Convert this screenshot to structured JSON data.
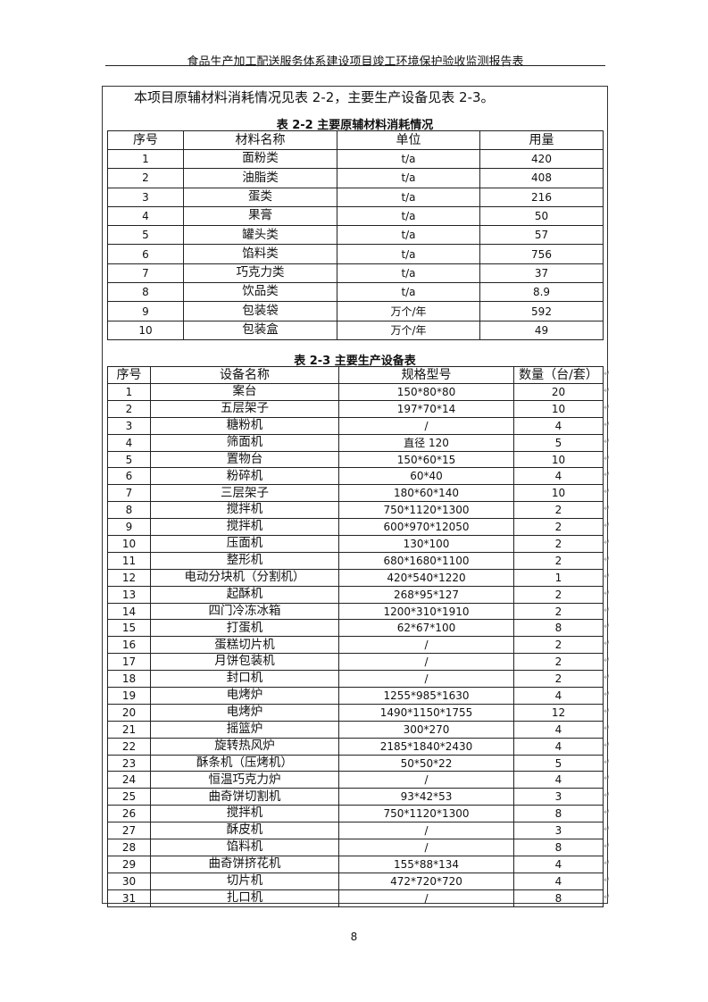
{
  "header": {
    "title": "食品生产加工配送服务体系建设项目竣工环境保护验收监测报告表"
  },
  "intro": "本项目原辅材料消耗情况见表 2-2，主要生产设备见表 2-3。",
  "table22": {
    "caption": "表 2-2   主要原辅材料消耗情况",
    "columns": [
      "序号",
      "材料名称",
      "单位",
      "用量"
    ],
    "rows": [
      [
        "1",
        "面粉类",
        "t/a",
        "420"
      ],
      [
        "2",
        "油脂类",
        "t/a",
        "408"
      ],
      [
        "3",
        "蛋类",
        "t/a",
        "216"
      ],
      [
        "4",
        "果膏",
        "t/a",
        "50"
      ],
      [
        "5",
        "罐头类",
        "t/a",
        "57"
      ],
      [
        "6",
        "馅料类",
        "t/a",
        "756"
      ],
      [
        "7",
        "巧克力类",
        "t/a",
        "37"
      ],
      [
        "8",
        "饮品类",
        "t/a",
        "8.9"
      ],
      [
        "9",
        "包装袋",
        "万个/年",
        "592"
      ],
      [
        "10",
        "包装盒",
        "万个/年",
        "49"
      ]
    ]
  },
  "table23": {
    "caption": "表 2-3   主要生产设备表",
    "columns": [
      "序号",
      "设备名称",
      "规格型号",
      "数量（台/套）"
    ],
    "rows": [
      [
        "1",
        "案台",
        "150*80*80",
        "20"
      ],
      [
        "2",
        "五层架子",
        "197*70*14",
        "10"
      ],
      [
        "3",
        "糖粉机",
        "/",
        "4"
      ],
      [
        "4",
        "筛面机",
        "直径 120",
        "5"
      ],
      [
        "5",
        "置物台",
        "150*60*15",
        "10"
      ],
      [
        "6",
        "粉碎机",
        "60*40",
        "4"
      ],
      [
        "7",
        "三层架子",
        "180*60*140",
        "10"
      ],
      [
        "8",
        "搅拌机",
        "750*1120*1300",
        "2"
      ],
      [
        "9",
        "搅拌机",
        "600*970*12050",
        "2"
      ],
      [
        "10",
        "压面机",
        "130*100",
        "2"
      ],
      [
        "11",
        "整形机",
        "680*1680*1100",
        "2"
      ],
      [
        "12",
        "电动分块机（分割机）",
        "420*540*1220",
        "1"
      ],
      [
        "13",
        "起酥机",
        "268*95*127",
        "2"
      ],
      [
        "14",
        "四门冷冻冰箱",
        "1200*310*1910",
        "2"
      ],
      [
        "15",
        "打蛋机",
        "62*67*100",
        "8"
      ],
      [
        "16",
        "蛋糕切片机",
        "/",
        "2"
      ],
      [
        "17",
        "月饼包装机",
        "/",
        "2"
      ],
      [
        "18",
        "封口机",
        "/",
        "2"
      ],
      [
        "19",
        "电烤炉",
        "1255*985*1630",
        "4"
      ],
      [
        "20",
        "电烤炉",
        "1490*1150*1755",
        "12"
      ],
      [
        "21",
        "摇篮炉",
        "300*270",
        "4"
      ],
      [
        "22",
        "旋转热风炉",
        "2185*1840*2430",
        "4"
      ],
      [
        "23",
        "酥条机（压烤机）",
        "50*50*22",
        "5"
      ],
      [
        "24",
        "恒温巧克力炉",
        "/",
        "4"
      ],
      [
        "25",
        "曲奇饼切割机",
        "93*42*53",
        "3"
      ],
      [
        "26",
        "搅拌机",
        "750*1120*1300",
        "8"
      ],
      [
        "27",
        "酥皮机",
        "/",
        "3"
      ],
      [
        "28",
        "馅料机",
        "/",
        "8"
      ],
      [
        "29",
        "曲奇饼挤花机",
        "155*88*134",
        "4"
      ],
      [
        "30",
        "切片机",
        "472*720*720",
        "4"
      ],
      [
        "31",
        "扎口机",
        "/",
        "8"
      ]
    ]
  },
  "page_number": "8"
}
